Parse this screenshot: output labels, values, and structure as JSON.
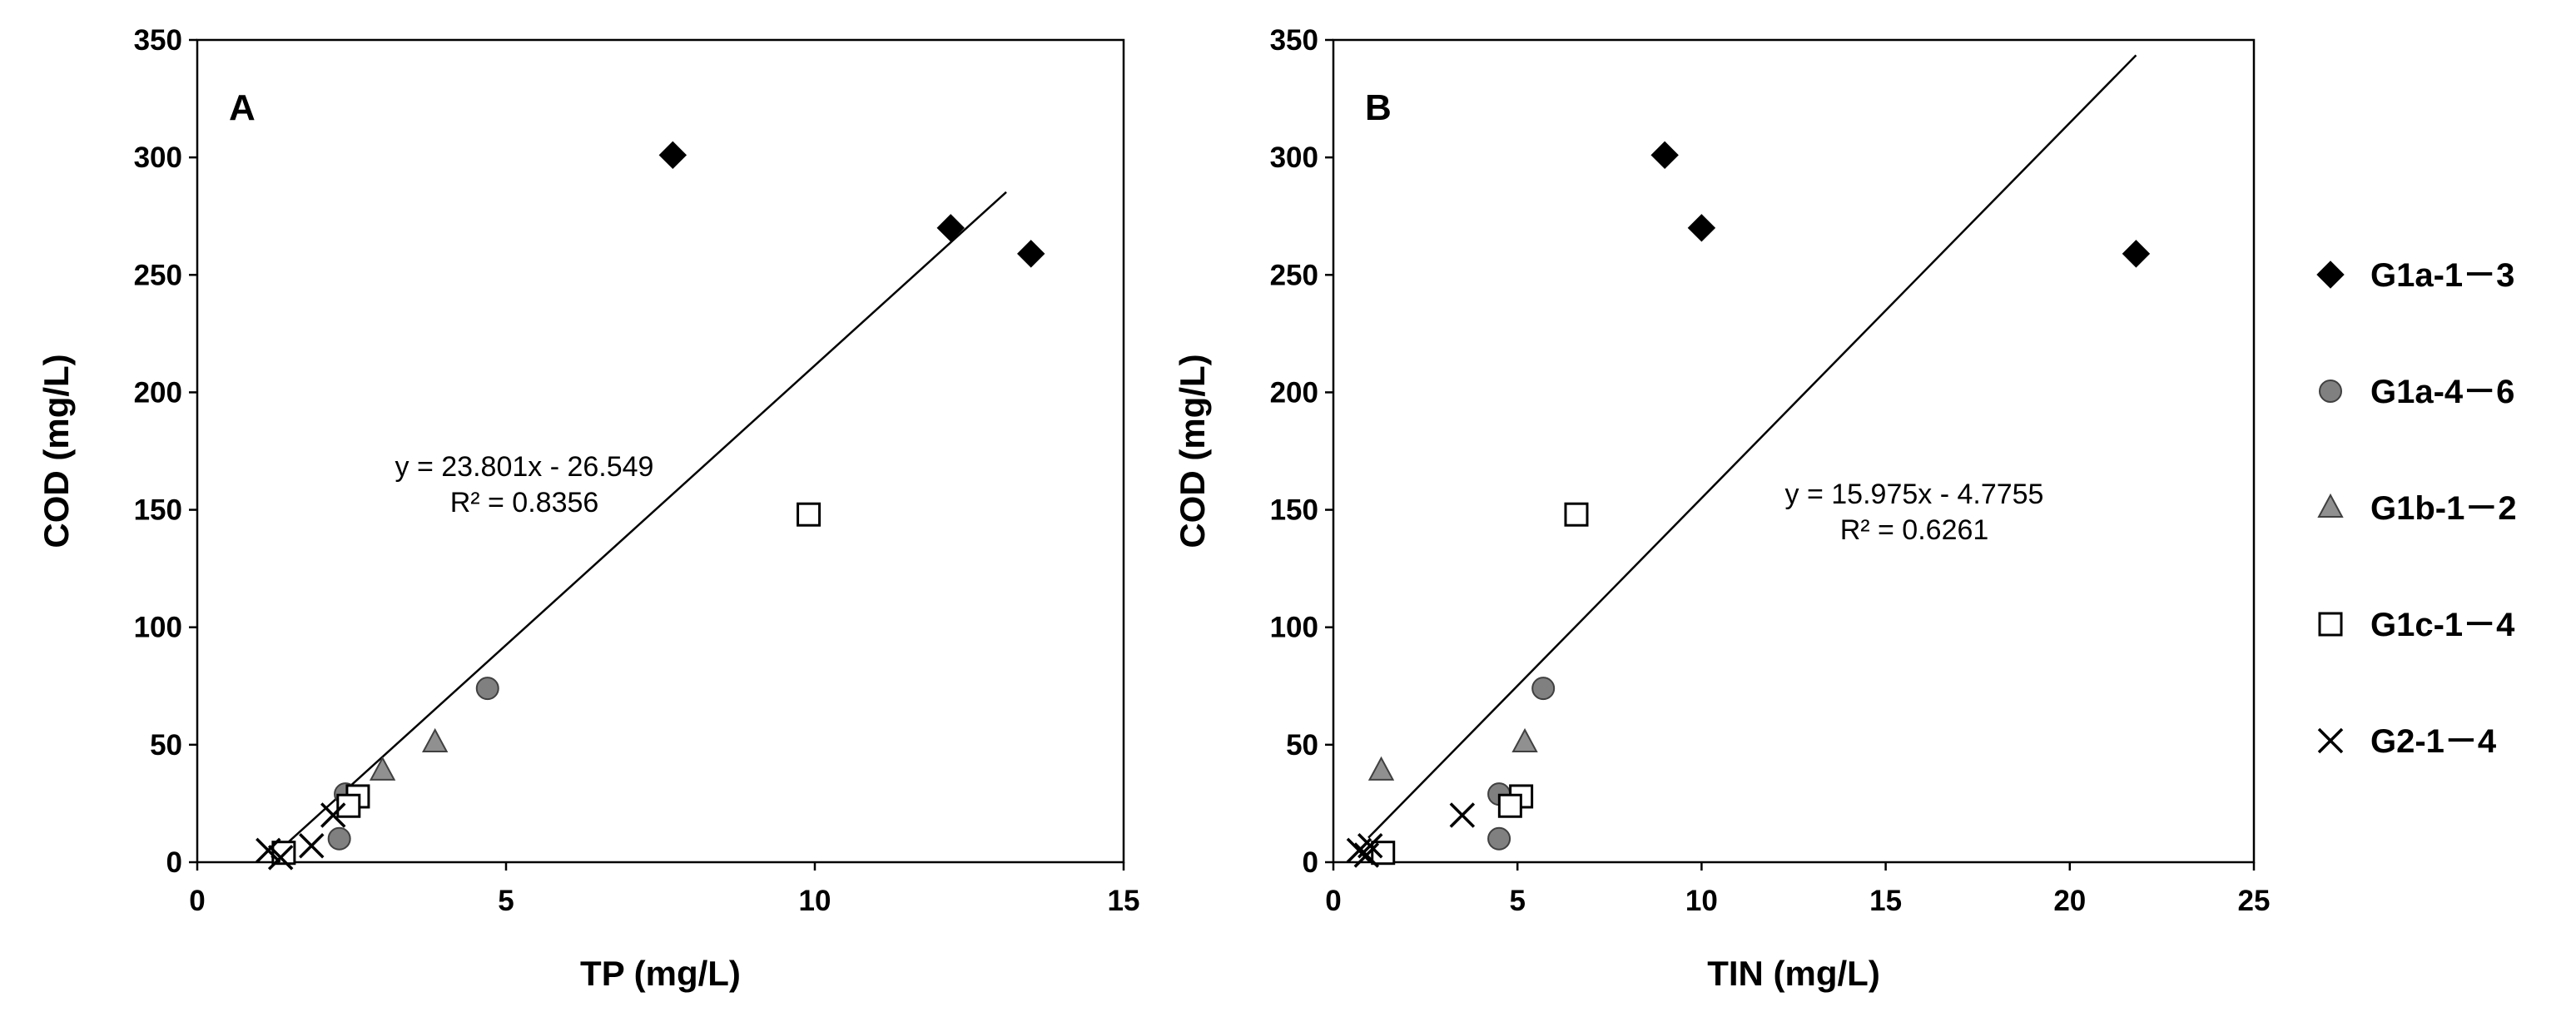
{
  "chart_data": [
    {
      "type": "scatter",
      "panel_label": "A",
      "xlabel": "TP (mg/L)",
      "ylabel": "COD (mg/L)",
      "xlim": [
        0,
        15
      ],
      "ylim": [
        0,
        350
      ],
      "xticks": [
        "0",
        "5",
        "10",
        "15"
      ],
      "yticks": [
        "0",
        "50",
        "100",
        "150",
        "200",
        "250",
        "300",
        "350"
      ],
      "series": [
        {
          "name": "G1a-1－3",
          "marker": "diamond",
          "points": [
            [
              7.7,
              301
            ],
            [
              12.2,
              270
            ],
            [
              13.5,
              259
            ]
          ]
        },
        {
          "name": "G1a-4－6",
          "marker": "circle",
          "points": [
            [
              4.7,
              74
            ],
            [
              2.4,
              29
            ],
            [
              2.3,
              10
            ]
          ]
        },
        {
          "name": "G1b-1－2",
          "marker": "triangle",
          "points": [
            [
              3.0,
              39
            ],
            [
              3.85,
              51
            ]
          ]
        },
        {
          "name": "G1c-1－4",
          "marker": "square",
          "points": [
            [
              9.9,
              148
            ],
            [
              2.6,
              28
            ],
            [
              2.45,
              24
            ],
            [
              1.4,
              4
            ]
          ]
        },
        {
          "name": "G2-1－4",
          "marker": "x",
          "points": [
            [
              1.15,
              5
            ],
            [
              1.85,
              7
            ],
            [
              2.2,
              20
            ],
            [
              1.35,
              2
            ]
          ]
        }
      ],
      "trendline": {
        "slope": 23.801,
        "intercept": -26.549,
        "x_range": [
          1.2,
          13.1
        ],
        "equation": "y = 23.801x - 26.549",
        "r2": "R² = 0.8356"
      },
      "grid": false
    },
    {
      "type": "scatter",
      "panel_label": "B",
      "xlabel": "TIN (mg/L)",
      "ylabel": "COD (mg/L)",
      "xlim": [
        0,
        25
      ],
      "ylim": [
        0,
        350
      ],
      "xticks": [
        "0",
        "5",
        "10",
        "15",
        "20",
        "25"
      ],
      "yticks": [
        "0",
        "50",
        "100",
        "150",
        "200",
        "250",
        "300",
        "350"
      ],
      "series": [
        {
          "name": "G1a-1－3",
          "marker": "diamond",
          "points": [
            [
              9.0,
              301
            ],
            [
              10.0,
              270
            ],
            [
              21.8,
              259
            ]
          ]
        },
        {
          "name": "G1a-4－6",
          "marker": "circle",
          "points": [
            [
              5.7,
              74
            ],
            [
              4.5,
              29
            ],
            [
              4.5,
              10
            ]
          ]
        },
        {
          "name": "G1b-1－2",
          "marker": "triangle",
          "points": [
            [
              1.3,
              39
            ],
            [
              5.2,
              51
            ]
          ]
        },
        {
          "name": "G1c-1－4",
          "marker": "square",
          "points": [
            [
              6.6,
              148
            ],
            [
              5.1,
              28
            ],
            [
              4.8,
              24
            ],
            [
              1.35,
              4
            ]
          ]
        },
        {
          "name": "G2-1－4",
          "marker": "x",
          "points": [
            [
              0.7,
              5
            ],
            [
              1.0,
              7
            ],
            [
              3.5,
              20
            ],
            [
              0.9,
              3
            ]
          ]
        }
      ],
      "trendline": {
        "slope": 15.975,
        "intercept": -4.7755,
        "x_range": [
          0.95,
          21.8
        ],
        "equation": "y = 15.975x - 4.7755",
        "r2": "R² = 0.6261"
      },
      "grid": false
    }
  ],
  "legend": {
    "placement": "right",
    "items": [
      {
        "label": "G1a-1－3",
        "marker": "diamond"
      },
      {
        "label": "G1a-4－6",
        "marker": "circle"
      },
      {
        "label": "G1b-1－2",
        "marker": "triangle"
      },
      {
        "label": "G1c-1－4",
        "marker": "square"
      },
      {
        "label": "G2-1－4",
        "marker": "x"
      }
    ]
  },
  "marker_colors": {
    "diamond": "#000000",
    "circle": "#808080",
    "triangle": "#909090",
    "square": "#ffffff",
    "x": "#000000",
    "outline": "#000000",
    "grey_outline": "#404040"
  }
}
